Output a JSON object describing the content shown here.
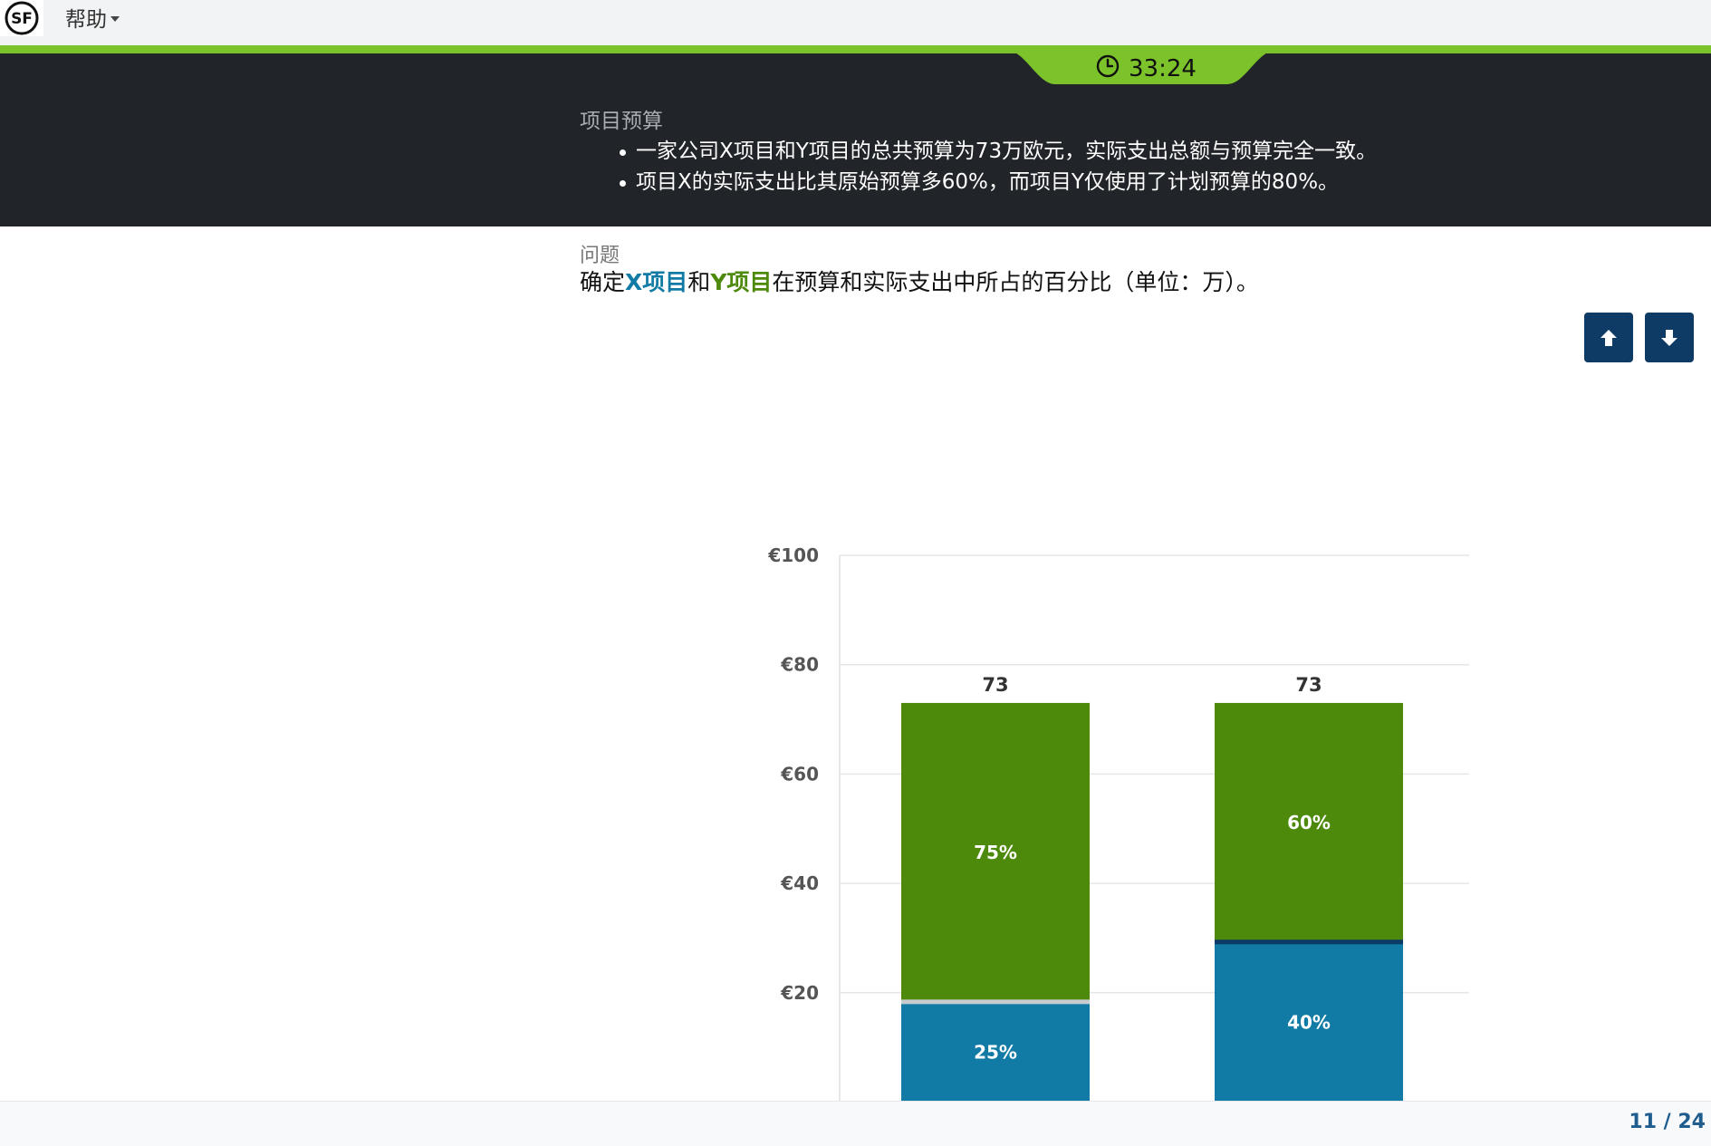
{
  "header": {
    "menu_help": "帮助",
    "timer": "33:24",
    "colors": {
      "accent_green": "#7cc22a",
      "dark_band": "#212529"
    }
  },
  "intro": {
    "title": "项目预算",
    "bullets": [
      "一家公司X项目和Y项目的总共预算为73万欧元，实际支出总额与预算完全一致。",
      "项目X的实际支出比其原始预算多60%，而项目Y仅使用了计划预算的80%。"
    ]
  },
  "question": {
    "label": "问题",
    "pre": "确定",
    "x_project": "X项目",
    "mid": "和",
    "y_project": "Y项目",
    "post": "在预算和实际支出中所占的百分比（单位：万）。"
  },
  "nav": {
    "up_icon": "arrow-up-icon",
    "down_icon": "arrow-down-icon"
  },
  "footer": {
    "page_counter": "11 / 24"
  },
  "chart_data": {
    "type": "bar",
    "stacked": true,
    "ylim": [
      0,
      100
    ],
    "yticks": [
      "€100",
      "€80",
      "€60",
      "€40",
      "€20"
    ],
    "ytick_values": [
      100,
      80,
      60,
      40,
      20
    ],
    "grid": true,
    "totals": [
      "73",
      "73"
    ],
    "total_values": [
      73,
      73
    ],
    "series": [
      {
        "values": [
          18.25,
          29.2
        ],
        "labels": [
          "25%",
          "40%"
        ],
        "color": "#117ba6"
      },
      {
        "values": [
          54.75,
          43.8
        ],
        "labels": [
          "75%",
          "60%"
        ],
        "color": "#4d8a0b"
      }
    ],
    "separator_colors": [
      "#c8ccd0",
      "#0b3a66"
    ]
  }
}
